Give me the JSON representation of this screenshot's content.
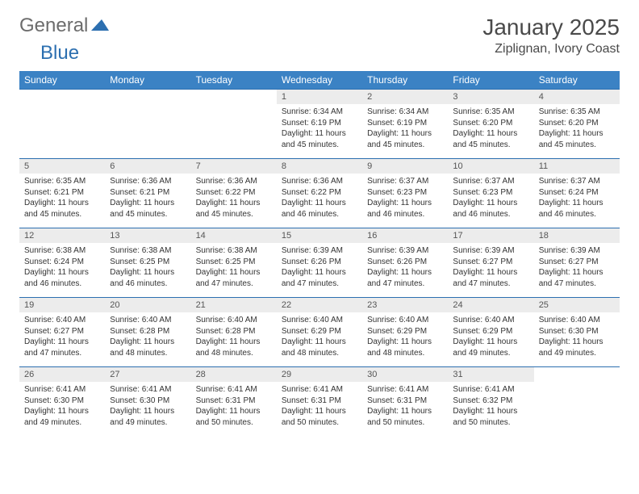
{
  "logo": {
    "text_general": "General",
    "text_blue": "Blue"
  },
  "title": {
    "month": "January 2025",
    "location": "Ziplignan, Ivory Coast"
  },
  "colors": {
    "header_bg": "#3b82c4",
    "header_text": "#ffffff",
    "daynum_bg": "#ececec",
    "cell_border": "#2c6fb0",
    "logo_gray": "#6c6c6c",
    "logo_blue": "#2c6fb0"
  },
  "weekdays": [
    "Sunday",
    "Monday",
    "Tuesday",
    "Wednesday",
    "Thursday",
    "Friday",
    "Saturday"
  ],
  "days": [
    {
      "n": 1,
      "sunrise": "6:34 AM",
      "sunset": "6:19 PM",
      "daylight": "11 hours and 45 minutes."
    },
    {
      "n": 2,
      "sunrise": "6:34 AM",
      "sunset": "6:19 PM",
      "daylight": "11 hours and 45 minutes."
    },
    {
      "n": 3,
      "sunrise": "6:35 AM",
      "sunset": "6:20 PM",
      "daylight": "11 hours and 45 minutes."
    },
    {
      "n": 4,
      "sunrise": "6:35 AM",
      "sunset": "6:20 PM",
      "daylight": "11 hours and 45 minutes."
    },
    {
      "n": 5,
      "sunrise": "6:35 AM",
      "sunset": "6:21 PM",
      "daylight": "11 hours and 45 minutes."
    },
    {
      "n": 6,
      "sunrise": "6:36 AM",
      "sunset": "6:21 PM",
      "daylight": "11 hours and 45 minutes."
    },
    {
      "n": 7,
      "sunrise": "6:36 AM",
      "sunset": "6:22 PM",
      "daylight": "11 hours and 45 minutes."
    },
    {
      "n": 8,
      "sunrise": "6:36 AM",
      "sunset": "6:22 PM",
      "daylight": "11 hours and 46 minutes."
    },
    {
      "n": 9,
      "sunrise": "6:37 AM",
      "sunset": "6:23 PM",
      "daylight": "11 hours and 46 minutes."
    },
    {
      "n": 10,
      "sunrise": "6:37 AM",
      "sunset": "6:23 PM",
      "daylight": "11 hours and 46 minutes."
    },
    {
      "n": 11,
      "sunrise": "6:37 AM",
      "sunset": "6:24 PM",
      "daylight": "11 hours and 46 minutes."
    },
    {
      "n": 12,
      "sunrise": "6:38 AM",
      "sunset": "6:24 PM",
      "daylight": "11 hours and 46 minutes."
    },
    {
      "n": 13,
      "sunrise": "6:38 AM",
      "sunset": "6:25 PM",
      "daylight": "11 hours and 46 minutes."
    },
    {
      "n": 14,
      "sunrise": "6:38 AM",
      "sunset": "6:25 PM",
      "daylight": "11 hours and 47 minutes."
    },
    {
      "n": 15,
      "sunrise": "6:39 AM",
      "sunset": "6:26 PM",
      "daylight": "11 hours and 47 minutes."
    },
    {
      "n": 16,
      "sunrise": "6:39 AM",
      "sunset": "6:26 PM",
      "daylight": "11 hours and 47 minutes."
    },
    {
      "n": 17,
      "sunrise": "6:39 AM",
      "sunset": "6:27 PM",
      "daylight": "11 hours and 47 minutes."
    },
    {
      "n": 18,
      "sunrise": "6:39 AM",
      "sunset": "6:27 PM",
      "daylight": "11 hours and 47 minutes."
    },
    {
      "n": 19,
      "sunrise": "6:40 AM",
      "sunset": "6:27 PM",
      "daylight": "11 hours and 47 minutes."
    },
    {
      "n": 20,
      "sunrise": "6:40 AM",
      "sunset": "6:28 PM",
      "daylight": "11 hours and 48 minutes."
    },
    {
      "n": 21,
      "sunrise": "6:40 AM",
      "sunset": "6:28 PM",
      "daylight": "11 hours and 48 minutes."
    },
    {
      "n": 22,
      "sunrise": "6:40 AM",
      "sunset": "6:29 PM",
      "daylight": "11 hours and 48 minutes."
    },
    {
      "n": 23,
      "sunrise": "6:40 AM",
      "sunset": "6:29 PM",
      "daylight": "11 hours and 48 minutes."
    },
    {
      "n": 24,
      "sunrise": "6:40 AM",
      "sunset": "6:29 PM",
      "daylight": "11 hours and 49 minutes."
    },
    {
      "n": 25,
      "sunrise": "6:40 AM",
      "sunset": "6:30 PM",
      "daylight": "11 hours and 49 minutes."
    },
    {
      "n": 26,
      "sunrise": "6:41 AM",
      "sunset": "6:30 PM",
      "daylight": "11 hours and 49 minutes."
    },
    {
      "n": 27,
      "sunrise": "6:41 AM",
      "sunset": "6:30 PM",
      "daylight": "11 hours and 49 minutes."
    },
    {
      "n": 28,
      "sunrise": "6:41 AM",
      "sunset": "6:31 PM",
      "daylight": "11 hours and 50 minutes."
    },
    {
      "n": 29,
      "sunrise": "6:41 AM",
      "sunset": "6:31 PM",
      "daylight": "11 hours and 50 minutes."
    },
    {
      "n": 30,
      "sunrise": "6:41 AM",
      "sunset": "6:31 PM",
      "daylight": "11 hours and 50 minutes."
    },
    {
      "n": 31,
      "sunrise": "6:41 AM",
      "sunset": "6:32 PM",
      "daylight": "11 hours and 50 minutes."
    }
  ],
  "labels": {
    "sunrise": "Sunrise:",
    "sunset": "Sunset:",
    "daylight": "Daylight:"
  },
  "layout": {
    "first_weekday_index": 3,
    "weeks": 5
  }
}
